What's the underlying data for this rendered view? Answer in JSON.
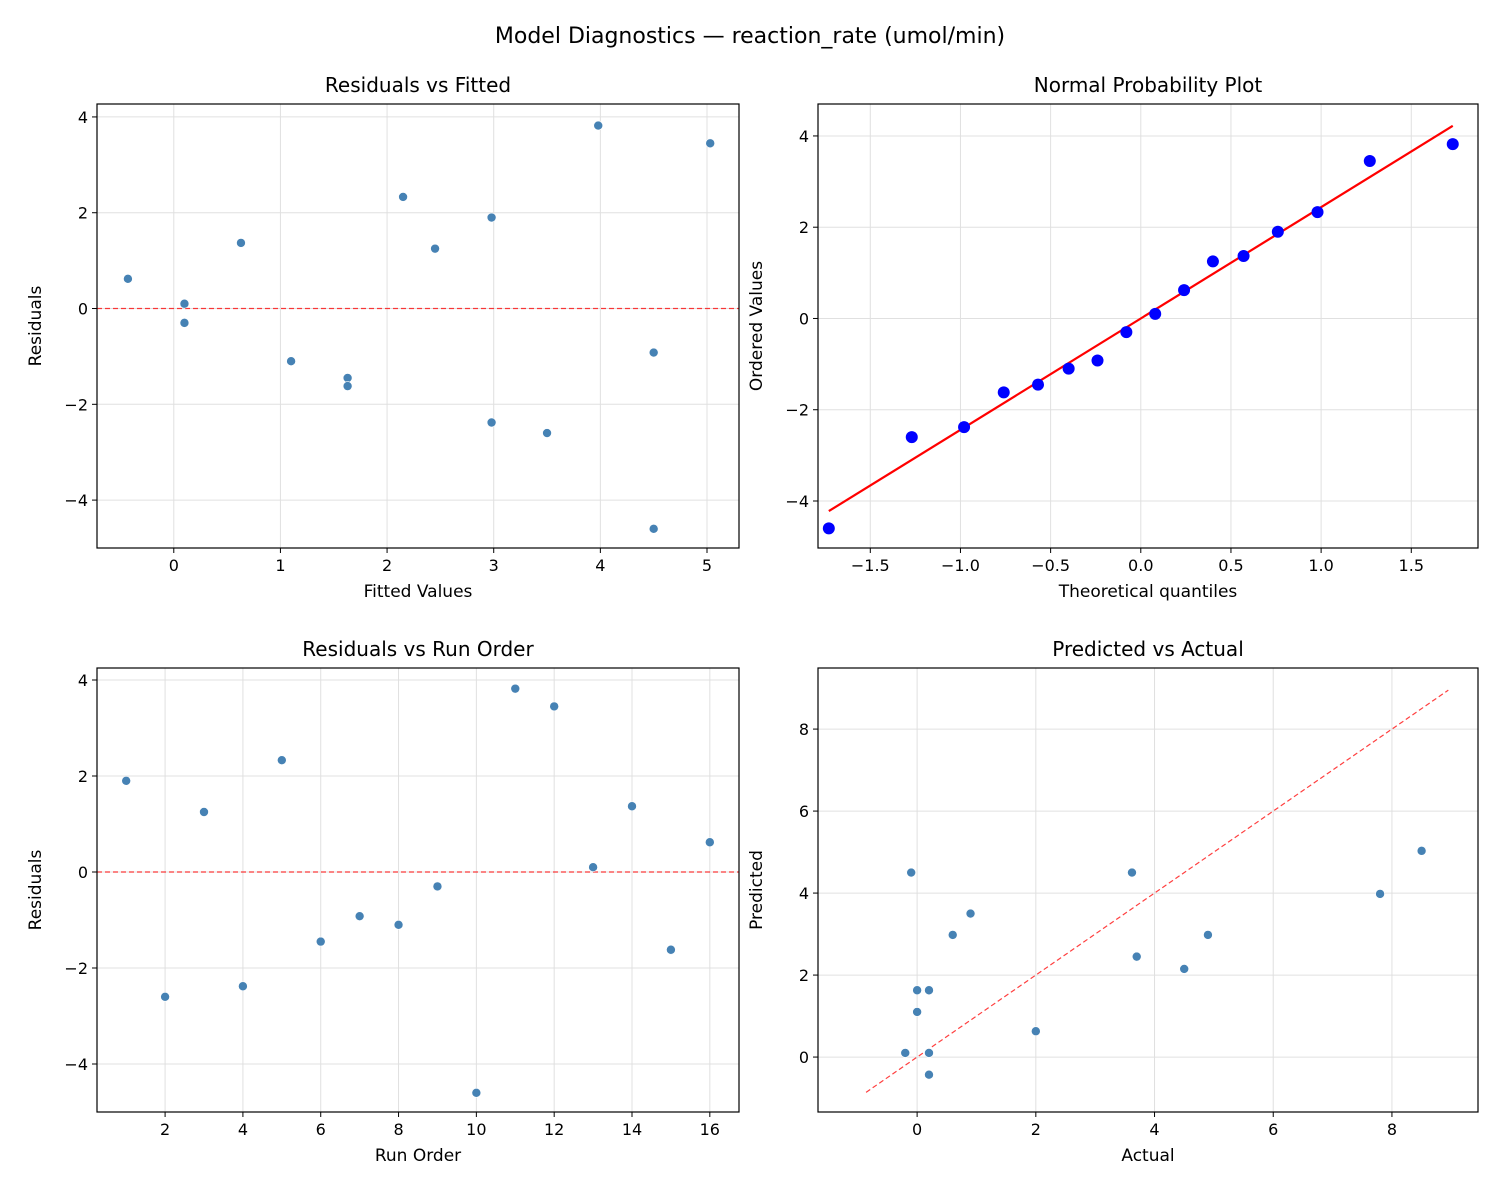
{
  "suptitle": "Model Diagnostics — reaction_rate (umol/min)",
  "colors": {
    "points": "#4682b4",
    "reference_line": "#ff0000",
    "qq_points": "#0000ff",
    "grid": "#e0e0e0"
  },
  "chart_data": [
    {
      "type": "scatter",
      "title": "Residuals vs Fitted",
      "xlabel": "Fitted Values",
      "ylabel": "Residuals",
      "xlim": [
        -0.72,
        5.3
      ],
      "ylim": [
        -5.0,
        4.27
      ],
      "xticks": [
        0,
        1,
        2,
        3,
        4,
        5
      ],
      "yticks": [
        -4,
        -2,
        0,
        2,
        4
      ],
      "grid": true,
      "x": [
        2.98,
        3.5,
        2.45,
        2.98,
        2.15,
        1.63,
        4.5,
        1.1,
        0.1,
        4.5,
        3.98,
        5.03,
        0.1,
        0.63,
        1.63,
        -0.43
      ],
      "y": [
        1.9,
        -2.6,
        1.25,
        -2.38,
        2.33,
        -1.45,
        -0.92,
        -1.1,
        -0.3,
        -4.6,
        3.82,
        3.45,
        0.1,
        1.37,
        -1.62,
        0.62
      ],
      "hline": 0
    },
    {
      "type": "scatter",
      "title": "Normal Probability Plot",
      "xlabel": "Theoretical quantiles",
      "ylabel": "Ordered Values",
      "xlim": [
        -1.79,
        1.87
      ],
      "ylim": [
        -5.03,
        4.7
      ],
      "xticks": [
        -1.5,
        -1.0,
        -0.5,
        0.0,
        0.5,
        1.0,
        1.5
      ],
      "yticks": [
        -4,
        -2,
        0,
        2,
        4
      ],
      "grid": true,
      "x": [
        -1.73,
        -1.27,
        -0.98,
        -0.76,
        -0.57,
        -0.4,
        -0.24,
        -0.08,
        0.08,
        0.24,
        0.4,
        0.57,
        0.76,
        0.98,
        1.27,
        1.73
      ],
      "y": [
        -4.6,
        -2.6,
        -2.38,
        -1.62,
        -1.45,
        -1.1,
        -0.92,
        -0.3,
        0.1,
        0.62,
        1.25,
        1.37,
        1.9,
        2.33,
        3.45,
        3.82
      ],
      "fit_line": {
        "slope": 2.44,
        "intercept": 0.0
      }
    },
    {
      "type": "scatter",
      "title": "Residuals vs Run Order",
      "xlabel": "Run Order",
      "ylabel": "Residuals",
      "xlim": [
        0.25,
        16.75
      ],
      "ylim": [
        -5.0,
        4.25
      ],
      "xticks": [
        2,
        4,
        6,
        8,
        10,
        12,
        14,
        16
      ],
      "yticks": [
        -4,
        -2,
        0,
        2,
        4
      ],
      "grid": true,
      "x": [
        1,
        2,
        3,
        4,
        5,
        6,
        7,
        8,
        9,
        10,
        11,
        12,
        13,
        14,
        15,
        16
      ],
      "y": [
        1.9,
        -2.6,
        1.25,
        -2.38,
        2.33,
        -1.45,
        -0.92,
        -1.1,
        -0.3,
        -4.6,
        3.82,
        3.45,
        0.1,
        1.37,
        -1.62,
        0.62
      ],
      "hline": 0
    },
    {
      "type": "scatter",
      "title": "Predicted vs Actual",
      "xlabel": "Actual",
      "ylabel": "Predicted",
      "xlim": [
        -1.67,
        9.45
      ],
      "ylim": [
        -1.34,
        9.49
      ],
      "xticks": [
        0,
        2,
        4,
        6,
        8
      ],
      "yticks": [
        0,
        2,
        4,
        6,
        8
      ],
      "grid": true,
      "x": [
        4.9,
        0.9,
        3.7,
        0.6,
        4.5,
        0.2,
        3.62,
        0.0,
        -0.2,
        -0.1,
        7.8,
        8.5,
        0.2,
        2.0,
        0.0,
        0.2
      ],
      "y": [
        2.98,
        3.5,
        2.45,
        2.98,
        2.15,
        1.63,
        4.5,
        1.1,
        0.1,
        4.5,
        3.98,
        5.03,
        0.1,
        0.63,
        1.63,
        -0.43
      ],
      "identity_line": [
        -0.86,
        8.95
      ]
    }
  ]
}
